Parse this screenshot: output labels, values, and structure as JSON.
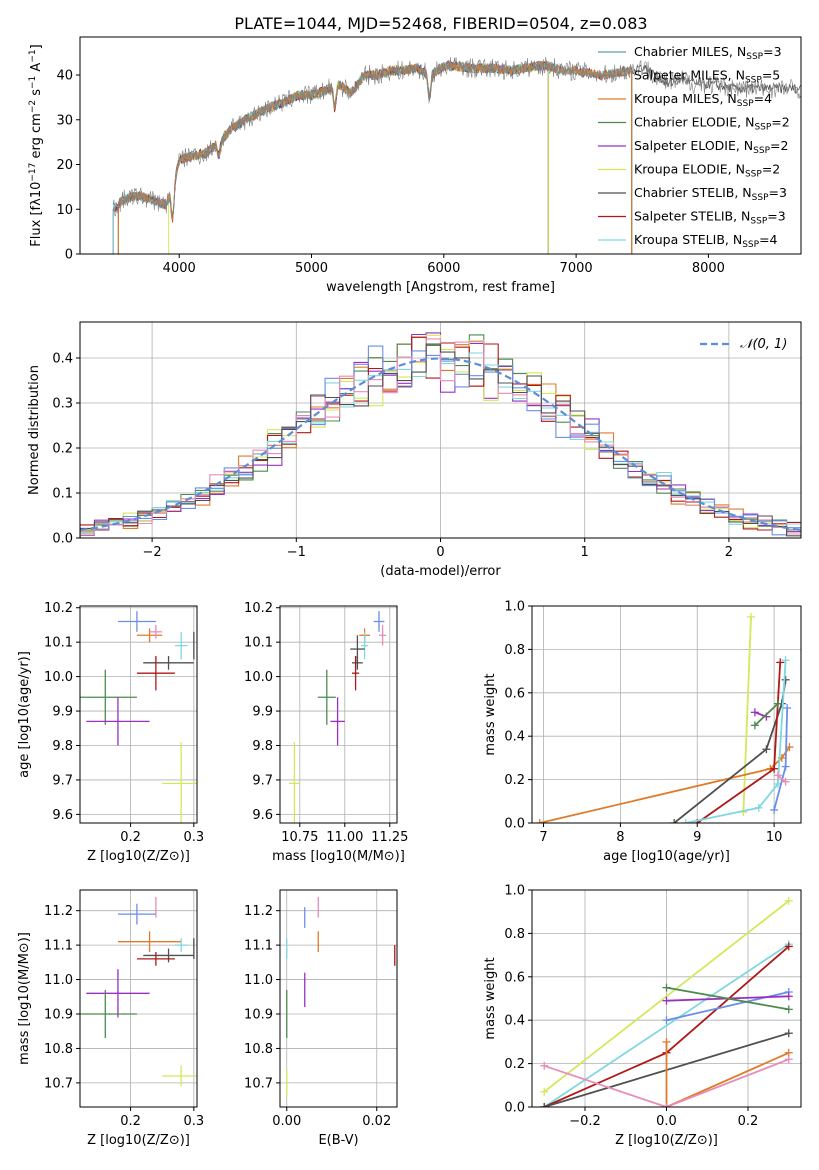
{
  "figure_title": "PLATE=1044, MJD=52468, FIBERID=0504, z=0.083",
  "colors": {
    "Chabrier MILES": "#5f9ea0",
    "Salpeter MILES": "#808080",
    "Kroupa MILES": "#e07b29",
    "Chabrier ELODIE": "#4e8a4e",
    "Salpeter ELODIE": "#9b30c0",
    "Kroupa ELODIE": "#d4e85a",
    "Chabrier STELIB": "#505050",
    "Salpeter STELIB": "#b01818",
    "Kroupa STELIB": "#7fd7e0",
    "hist_extra_blue": "#6a8fe8",
    "hist_extra_pink": "#e88cb8",
    "normal_curve": "#5b8ed6"
  },
  "chart_data": [
    {
      "id": "spectrum",
      "type": "line",
      "title": "PLATE=1044, MJD=52468, FIBERID=0504, z=0.083",
      "xlabel": "wavelength [Angstrom, rest frame]",
      "ylabel": "Flux [f_λ 10^-17 erg cm^-2 s^-1 A^-1]",
      "xlim": [
        3250,
        8700
      ],
      "ylim": [
        0,
        48.5
      ],
      "xticks": [
        4000,
        5000,
        6000,
        7000,
        8000
      ],
      "yticks": [
        0,
        10,
        20,
        30,
        40
      ],
      "grid": false,
      "legend_position": "top-right",
      "legend": [
        {
          "label": "Chabrier MILES, N",
          "sub": "SSP",
          "suffix": "=3",
          "color_key": "Chabrier MILES"
        },
        {
          "label": "Salpeter MILES, N",
          "sub": "SSP",
          "suffix": "=5",
          "color_key": "Salpeter MILES"
        },
        {
          "label": "Kroupa MILES, N",
          "sub": "SSP",
          "suffix": "=4",
          "color_key": "Kroupa MILES"
        },
        {
          "label": "Chabrier ELODIE, N",
          "sub": "SSP",
          "suffix": "=2",
          "color_key": "Chabrier ELODIE"
        },
        {
          "label": "Salpeter ELODIE, N",
          "sub": "SSP",
          "suffix": "=2",
          "color_key": "Salpeter ELODIE"
        },
        {
          "label": "Kroupa ELODIE, N",
          "sub": "SSP",
          "suffix": "=2",
          "color_key": "Kroupa ELODIE"
        },
        {
          "label": "Chabrier STELIB, N",
          "sub": "SSP",
          "suffix": "=3",
          "color_key": "Chabrier STELIB"
        },
        {
          "label": "Salpeter STELIB, N",
          "sub": "SSP",
          "suffix": "=3",
          "color_key": "Salpeter STELIB"
        },
        {
          "label": "Kroupa STELIB, N",
          "sub": "SSP",
          "suffix": "=4",
          "color_key": "Kroupa STELIB"
        }
      ],
      "continuum": [
        [
          3500,
          10
        ],
        [
          3600,
          12.5
        ],
        [
          3700,
          13
        ],
        [
          3800,
          12
        ],
        [
          3900,
          11
        ],
        [
          3950,
          15
        ],
        [
          4000,
          21
        ],
        [
          4100,
          22
        ],
        [
          4200,
          22.5
        ],
        [
          4300,
          25
        ],
        [
          4400,
          28
        ],
        [
          4500,
          30
        ],
        [
          4600,
          31.5
        ],
        [
          4700,
          33
        ],
        [
          4800,
          34
        ],
        [
          4900,
          35.5
        ],
        [
          5000,
          35.5
        ],
        [
          5100,
          36.5
        ],
        [
          5200,
          38
        ],
        [
          5300,
          36
        ],
        [
          5400,
          40
        ],
        [
          5500,
          40
        ],
        [
          5600,
          41
        ],
        [
          5700,
          41
        ],
        [
          5800,
          41.5
        ],
        [
          5900,
          40
        ],
        [
          6000,
          42
        ],
        [
          6100,
          42
        ],
        [
          6200,
          41.5
        ],
        [
          6300,
          41.5
        ],
        [
          6400,
          41.5
        ],
        [
          6500,
          41
        ],
        [
          6600,
          41.5
        ],
        [
          6700,
          42
        ],
        [
          6800,
          42
        ],
        [
          6900,
          41
        ],
        [
          7000,
          41
        ],
        [
          7100,
          40.5
        ],
        [
          7200,
          40
        ],
        [
          7300,
          40.5
        ],
        [
          7400,
          41
        ],
        [
          7500,
          42
        ],
        [
          7600,
          40
        ],
        [
          7700,
          38
        ],
        [
          7800,
          39
        ],
        [
          7900,
          38
        ],
        [
          8000,
          38
        ],
        [
          8100,
          37.5
        ],
        [
          8200,
          37
        ],
        [
          8300,
          37
        ]
      ],
      "dips": [
        {
          "x": 3950,
          "depth": 7
        },
        {
          "x": 4300,
          "depth": 3
        },
        {
          "x": 5175,
          "depth": 5
        },
        {
          "x": 5890,
          "depth": 5
        }
      ],
      "line_segments": [
        {
          "color_key": "Chabrier ELODIE",
          "x": [
            3500,
            6790
          ]
        },
        {
          "color_key": "Salpeter ELODIE",
          "x": [
            3500,
            6790
          ]
        },
        {
          "color_key": "Kroupa ELODIE",
          "x": [
            3920,
            6790
          ]
        },
        {
          "color_key": "Chabrier STELIB",
          "x": [
            3500,
            8700
          ]
        },
        {
          "color_key": "Salpeter STELIB",
          "x": [
            3500,
            7420
          ]
        },
        {
          "color_key": "Kroupa STELIB",
          "x": [
            3500,
            7420
          ]
        },
        {
          "color_key": "Chabrier MILES",
          "x": [
            3540,
            7420
          ]
        },
        {
          "color_key": "Salpeter MILES",
          "x": [
            3540,
            7420
          ]
        },
        {
          "color_key": "Kroupa MILES",
          "x": [
            3540,
            7420
          ]
        }
      ],
      "observed_color": "#808080",
      "observed_range": [
        3500,
        8700
      ]
    },
    {
      "id": "residual_histogram",
      "type": "line",
      "xlabel": "(data-model)/error",
      "ylabel": "Normed distribution",
      "xlim": [
        -2.5,
        2.5
      ],
      "ylim": [
        0,
        0.48
      ],
      "xticks": [
        -2,
        -1,
        0,
        1,
        2
      ],
      "yticks": [
        0.0,
        0.1,
        0.2,
        0.3,
        0.4
      ],
      "grid": true,
      "legend_position": "top-right",
      "legend": [
        {
          "label": "N(0,1)",
          "color_key": "normal_curve",
          "style": "dashed"
        }
      ],
      "bin_width": 0.1,
      "bins_from": -2.5,
      "hist_series_colors": [
        "Kroupa MILES",
        "Chabrier ELODIE",
        "Salpeter ELODIE",
        "Kroupa ELODIE",
        "Salpeter STELIB",
        "Kroupa STELIB",
        "hist_extra_blue",
        "hist_extra_pink",
        "Chabrier STELIB"
      ]
    },
    {
      "id": "age_vs_Z",
      "type": "scatter",
      "xlabel": "Z [log10(Z/Z⊙)]",
      "ylabel": "age [log10(age/yr)]",
      "xlim": [
        0.12,
        0.305
      ],
      "ylim": [
        9.575,
        10.205
      ],
      "xticks": [
        0.2,
        0.3
      ],
      "yticks": [
        9.6,
        9.7,
        9.8,
        9.9,
        10.0,
        10.1,
        10.2
      ],
      "grid": true,
      "points": [
        {
          "color_key": "hist_extra_blue",
          "x": 0.21,
          "xerr": 0.03,
          "y": 10.16,
          "yerr": 0.03
        },
        {
          "color_key": "Kroupa MILES",
          "x": 0.23,
          "xerr": 0.02,
          "y": 10.12,
          "yerr": 0.02
        },
        {
          "color_key": "hist_extra_pink",
          "x": 0.24,
          "xerr": 0.01,
          "y": 10.13,
          "yerr": 0.02
        },
        {
          "color_key": "Kroupa STELIB",
          "x": 0.28,
          "xerr": 0.01,
          "y": 10.09,
          "yerr": 0.04
        },
        {
          "color_key": "Chabrier STELIB",
          "x": 0.3,
          "xerr": 0.0,
          "y": 10.09,
          "yerr": 0.04
        },
        {
          "color_key": "Chabrier STELIB",
          "x": 0.26,
          "xerr": 0.04,
          "y": 10.04,
          "yerr": 0.02
        },
        {
          "color_key": "Salpeter STELIB",
          "x": 0.24,
          "xerr": 0.03,
          "y": 10.01,
          "yerr": 0.05
        },
        {
          "color_key": "Chabrier ELODIE",
          "x": 0.16,
          "xerr": 0.05,
          "y": 9.94,
          "yerr": 0.08
        },
        {
          "color_key": "Salpeter ELODIE",
          "x": 0.18,
          "xerr": 0.05,
          "y": 9.87,
          "yerr": 0.07
        },
        {
          "color_key": "Kroupa ELODIE",
          "x": 0.28,
          "xerr": 0.03,
          "y": 9.69,
          "yerr": 0.12
        }
      ]
    },
    {
      "id": "age_vs_mass",
      "type": "scatter",
      "xlabel": "mass [log10(M/M⊙)]",
      "ylabel": "",
      "xlim": [
        10.64,
        11.29
      ],
      "ylim": [
        9.575,
        10.205
      ],
      "xticks": [
        10.75,
        11.0,
        11.25
      ],
      "yticks": [
        9.6,
        9.7,
        9.8,
        9.9,
        10.0,
        10.1,
        10.2
      ],
      "grid": true,
      "points": [
        {
          "color_key": "hist_extra_blue",
          "x": 11.19,
          "xerr": 0.03,
          "y": 10.16,
          "yerr": 0.03
        },
        {
          "color_key": "hist_extra_pink",
          "x": 11.21,
          "xerr": 0.02,
          "y": 10.12,
          "yerr": 0.03
        },
        {
          "color_key": "Kroupa MILES",
          "x": 11.11,
          "xerr": 0.03,
          "y": 10.12,
          "yerr": 0.02
        },
        {
          "color_key": "Kroupa STELIB",
          "x": 11.11,
          "xerr": 0.02,
          "y": 10.09,
          "yerr": 0.04
        },
        {
          "color_key": "Chabrier STELIB",
          "x": 11.07,
          "xerr": 0.04,
          "y": 10.08,
          "yerr": 0.04
        },
        {
          "color_key": "Chabrier STELIB",
          "x": 11.07,
          "xerr": 0.03,
          "y": 10.04,
          "yerr": 0.02
        },
        {
          "color_key": "Salpeter STELIB",
          "x": 11.06,
          "xerr": 0.02,
          "y": 10.01,
          "yerr": 0.05
        },
        {
          "color_key": "Chabrier ELODIE",
          "x": 10.9,
          "xerr": 0.05,
          "y": 9.94,
          "yerr": 0.08
        },
        {
          "color_key": "Salpeter ELODIE",
          "x": 10.96,
          "xerr": 0.04,
          "y": 9.87,
          "yerr": 0.07
        },
        {
          "color_key": "Kroupa ELODIE",
          "x": 10.72,
          "xerr": 0.03,
          "y": 9.69,
          "yerr": 0.12
        }
      ]
    },
    {
      "id": "mass_weight_vs_age",
      "type": "line",
      "xlabel": "age [log10(age/yr)]",
      "ylabel": "mass weight",
      "xlim": [
        6.85,
        10.35
      ],
      "ylim": [
        0,
        1.0
      ],
      "xticks": [
        7,
        8,
        9,
        10
      ],
      "yticks": [
        0.0,
        0.2,
        0.4,
        0.6,
        0.8,
        1.0
      ],
      "grid": true,
      "series": [
        {
          "color_key": "Kroupa ELODIE",
          "x": [
            9.6,
            9.7
          ],
          "y": [
            0.05,
            0.95
          ]
        },
        {
          "color_key": "Kroupa MILES",
          "x": [
            6.95,
            9.95,
            10.1,
            10.2
          ],
          "y": [
            0.0,
            0.25,
            0.3,
            0.35
          ]
        },
        {
          "color_key": "Chabrier STELIB",
          "x": [
            8.7,
            9.9,
            10.1,
            10.15
          ],
          "y": [
            0.0,
            0.34,
            0.55,
            0.66
          ]
        },
        {
          "color_key": "Salpeter STELIB",
          "x": [
            9.0,
            10.0,
            10.08
          ],
          "y": [
            0.0,
            0.25,
            0.74
          ]
        },
        {
          "color_key": "Kroupa STELIB",
          "x": [
            8.85,
            9.8,
            10.05,
            10.15
          ],
          "y": [
            0.0,
            0.07,
            0.18,
            0.75
          ]
        },
        {
          "color_key": "Salpeter ELODIE",
          "x": [
            9.75,
            9.9
          ],
          "y": [
            0.51,
            0.49
          ]
        },
        {
          "color_key": "Chabrier ELODIE",
          "x": [
            9.75,
            10.05
          ],
          "y": [
            0.45,
            0.55
          ]
        },
        {
          "color_key": "hist_extra_blue",
          "x": [
            10.0,
            10.15,
            10.17
          ],
          "y": [
            0.06,
            0.26,
            0.53
          ]
        },
        {
          "color_key": "hist_extra_pink",
          "x": [
            10.05,
            10.15
          ],
          "y": [
            0.22,
            0.19
          ]
        }
      ]
    },
    {
      "id": "mass_vs_Z",
      "type": "scatter",
      "xlabel": "Z [log10(Z/Z⊙)]",
      "ylabel": "mass [log10(M/M⊙)]",
      "xlim": [
        0.12,
        0.305
      ],
      "ylim": [
        10.63,
        11.26
      ],
      "xticks": [
        0.2,
        0.3
      ],
      "yticks": [
        10.7,
        10.8,
        10.9,
        11.0,
        11.1,
        11.2
      ],
      "grid": true,
      "points": [
        {
          "color_key": "hist_extra_pink",
          "x": 0.24,
          "xerr": 0.0,
          "y": 11.21,
          "yerr": 0.03
        },
        {
          "color_key": "hist_extra_blue",
          "x": 0.21,
          "xerr": 0.03,
          "y": 11.19,
          "yerr": 0.03
        },
        {
          "color_key": "Kroupa MILES",
          "x": 0.23,
          "xerr": 0.05,
          "y": 11.11,
          "yerr": 0.03
        },
        {
          "color_key": "Kroupa STELIB",
          "x": 0.28,
          "xerr": 0.01,
          "y": 11.1,
          "yerr": 0.02
        },
        {
          "color_key": "Chabrier STELIB",
          "x": 0.3,
          "xerr": 0.0,
          "y": 11.09,
          "yerr": 0.03
        },
        {
          "color_key": "Chabrier STELIB",
          "x": 0.26,
          "xerr": 0.04,
          "y": 11.07,
          "yerr": 0.02
        },
        {
          "color_key": "Salpeter STELIB",
          "x": 0.24,
          "xerr": 0.03,
          "y": 11.06,
          "yerr": 0.02
        },
        {
          "color_key": "Salpeter ELODIE",
          "x": 0.18,
          "xerr": 0.05,
          "y": 10.96,
          "yerr": 0.07
        },
        {
          "color_key": "Chabrier ELODIE",
          "x": 0.16,
          "xerr": 0.05,
          "y": 10.9,
          "yerr": 0.07
        },
        {
          "color_key": "Kroupa ELODIE",
          "x": 0.28,
          "xerr": 0.03,
          "y": 10.72,
          "yerr": 0.03
        }
      ]
    },
    {
      "id": "mass_vs_EBV",
      "type": "scatter",
      "xlabel": "E(B-V)",
      "ylabel": "",
      "xlim": [
        -0.0015,
        0.0245
      ],
      "ylim": [
        10.63,
        11.26
      ],
      "xticks": [
        0.0,
        0.02
      ],
      "yticks": [
        10.7,
        10.8,
        10.9,
        11.0,
        11.1,
        11.2
      ],
      "grid": true,
      "points": [
        {
          "color_key": "hist_extra_pink",
          "x": 0.007,
          "xerr": 0.0,
          "y": 11.21,
          "yerr": 0.03
        },
        {
          "color_key": "hist_extra_blue",
          "x": 0.004,
          "xerr": 0.0,
          "y": 11.18,
          "yerr": 0.03
        },
        {
          "color_key": "Kroupa MILES",
          "x": 0.007,
          "xerr": 0.0,
          "y": 11.11,
          "yerr": 0.03
        },
        {
          "color_key": "Kroupa STELIB",
          "x": 0.0,
          "xerr": 0.0,
          "y": 11.09,
          "yerr": 0.03
        },
        {
          "color_key": "Salpeter STELIB",
          "x": 0.024,
          "xerr": 0.0,
          "y": 11.07,
          "yerr": 0.03
        },
        {
          "color_key": "Salpeter ELODIE",
          "x": 0.004,
          "xerr": 0.0,
          "y": 10.97,
          "yerr": 0.05
        },
        {
          "color_key": "Chabrier ELODIE",
          "x": 0.0,
          "xerr": 0.0,
          "y": 10.9,
          "yerr": 0.07
        },
        {
          "color_key": "Kroupa ELODIE",
          "x": 0.0,
          "xerr": 0.0,
          "y": 10.7,
          "yerr": 0.04
        }
      ]
    },
    {
      "id": "mass_weight_vs_Z",
      "type": "line",
      "xlabel": "Z [log10(Z/Z⊙)]",
      "ylabel": "mass weight",
      "xlim": [
        -0.33,
        0.33
      ],
      "ylim": [
        0,
        1.0
      ],
      "xticks": [
        -0.2,
        0.0,
        0.2
      ],
      "yticks": [
        0.0,
        0.2,
        0.4,
        0.6,
        0.8,
        1.0
      ],
      "grid": true,
      "series": [
        {
          "color_key": "Kroupa ELODIE",
          "x": [
            -0.3,
            0.3
          ],
          "y": [
            0.07,
            0.95
          ]
        },
        {
          "color_key": "Kroupa STELIB",
          "x": [
            -0.3,
            0.3
          ],
          "y": [
            0.0,
            0.75
          ]
        },
        {
          "color_key": "Salpeter STELIB",
          "x": [
            -0.3,
            0.0,
            0.3
          ],
          "y": [
            0.0,
            0.25,
            0.74
          ]
        },
        {
          "color_key": "Chabrier STELIB",
          "x": [
            -0.3,
            0.3
          ],
          "y": [
            0.0,
            0.34
          ]
        },
        {
          "color_key": "Kroupa MILES",
          "x": [
            0.0,
            0.0,
            0.3
          ],
          "y": [
            0.3,
            0.0,
            0.25
          ]
        },
        {
          "color_key": "hist_extra_pink",
          "x": [
            -0.3,
            0.0,
            0.3
          ],
          "y": [
            0.19,
            0.0,
            0.22
          ]
        },
        {
          "color_key": "hist_extra_blue",
          "x": [
            0.0,
            0.3
          ],
          "y": [
            0.4,
            0.53
          ]
        },
        {
          "color_key": "Salpeter ELODIE",
          "x": [
            0.0,
            0.3
          ],
          "y": [
            0.49,
            0.51
          ]
        },
        {
          "color_key": "Chabrier ELODIE",
          "x": [
            0.0,
            0.3
          ],
          "y": [
            0.55,
            0.45
          ]
        }
      ]
    }
  ]
}
